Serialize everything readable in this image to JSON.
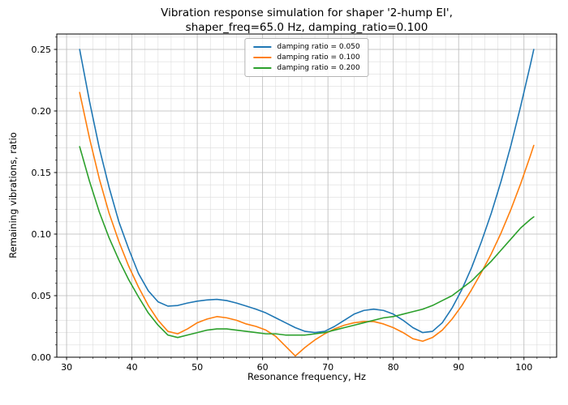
{
  "figure": {
    "title_line1": "Vibration response simulation for shaper '2-hump EI',",
    "title_line2": "shaper_freq=65.0 Hz, damping_ratio=0.100"
  },
  "chart_data": {
    "type": "line",
    "title": "Vibration response simulation for shaper '2-hump EI', shaper_freq=65.0 Hz, damping_ratio=0.100",
    "xlabel": "Resonance frequency, Hz",
    "ylabel": "Remaining vibrations, ratio",
    "xlim": [
      28.5,
      105.0
    ],
    "ylim": [
      0.0,
      0.2625
    ],
    "xticks": [
      30,
      40,
      50,
      60,
      70,
      80,
      90,
      100
    ],
    "xtick_labels": [
      "30",
      "40",
      "50",
      "60",
      "70",
      "80",
      "90",
      "100"
    ],
    "yticks": [
      0.0,
      0.05,
      0.1,
      0.15,
      0.2,
      0.25
    ],
    "ytick_labels": [
      "0.00",
      "0.05",
      "0.10",
      "0.15",
      "0.20",
      "0.25"
    ],
    "grid": {
      "major": true,
      "minor": true,
      "x_minor_step": 2,
      "y_minor_step": 0.01
    },
    "legend": {
      "position": "upper center",
      "entries": [
        "damping ratio = 0.050",
        "damping ratio = 0.100",
        "damping ratio = 0.200"
      ]
    },
    "x": [
      32,
      33.5,
      35,
      36.5,
      38,
      39.5,
      41,
      42.5,
      44,
      45.5,
      47,
      48.5,
      50,
      51.5,
      53,
      54.5,
      56,
      57.5,
      59,
      60.5,
      62,
      63.5,
      65,
      66.5,
      68,
      69.5,
      71,
      72.5,
      74,
      75.5,
      77,
      78.5,
      80,
      81.5,
      83,
      84.5,
      86,
      87.5,
      89,
      90.5,
      92,
      93.5,
      95,
      96.5,
      98,
      99.5,
      101,
      101.5
    ],
    "series": [
      {
        "name": "damping ratio = 0.050",
        "color": "#1f77b4",
        "values": [
          0.25,
          0.208,
          0.17,
          0.138,
          0.11,
          0.088,
          0.068,
          0.054,
          0.045,
          0.0415,
          0.042,
          0.044,
          0.0455,
          0.0465,
          0.047,
          0.046,
          0.044,
          0.0415,
          0.039,
          0.036,
          0.032,
          0.028,
          0.024,
          0.021,
          0.02,
          0.021,
          0.025,
          0.03,
          0.035,
          0.038,
          0.039,
          0.038,
          0.035,
          0.03,
          0.024,
          0.02,
          0.021,
          0.028,
          0.04,
          0.055,
          0.073,
          0.094,
          0.117,
          0.143,
          0.172,
          0.204,
          0.238,
          0.25
        ]
      },
      {
        "name": "damping ratio = 0.100",
        "color": "#ff7f0e",
        "values": [
          0.215,
          0.178,
          0.145,
          0.117,
          0.094,
          0.074,
          0.057,
          0.042,
          0.03,
          0.021,
          0.019,
          0.023,
          0.028,
          0.031,
          0.033,
          0.032,
          0.03,
          0.027,
          0.025,
          0.022,
          0.017,
          0.009,
          0.001,
          0.008,
          0.014,
          0.019,
          0.023,
          0.026,
          0.028,
          0.029,
          0.029,
          0.027,
          0.024,
          0.02,
          0.015,
          0.013,
          0.016,
          0.022,
          0.031,
          0.042,
          0.055,
          0.069,
          0.084,
          0.101,
          0.12,
          0.141,
          0.164,
          0.172
        ]
      },
      {
        "name": "damping ratio = 0.200",
        "color": "#2ca02c",
        "values": [
          0.171,
          0.143,
          0.118,
          0.097,
          0.079,
          0.063,
          0.049,
          0.036,
          0.026,
          0.018,
          0.016,
          0.018,
          0.02,
          0.022,
          0.023,
          0.023,
          0.022,
          0.021,
          0.02,
          0.019,
          0.019,
          0.018,
          0.018,
          0.018,
          0.019,
          0.02,
          0.022,
          0.024,
          0.026,
          0.028,
          0.03,
          0.032,
          0.033,
          0.035,
          0.037,
          0.039,
          0.042,
          0.046,
          0.05,
          0.056,
          0.062,
          0.07,
          0.078,
          0.087,
          0.096,
          0.105,
          0.112,
          0.114
        ]
      }
    ]
  }
}
